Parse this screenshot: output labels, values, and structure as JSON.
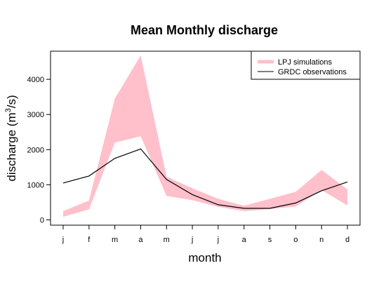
{
  "chart_data": {
    "type": "area",
    "title": "Mean Monthly discharge",
    "xlabel": "month",
    "ylabel": "discharge (m^3/s)",
    "ylabel_main": "discharge (m",
    "ylabel_sup": "3",
    "ylabel_end": "/s)",
    "categories": [
      "j",
      "f",
      "m",
      "a",
      "m",
      "j",
      "j",
      "a",
      "s",
      "o",
      "n",
      "d"
    ],
    "ylim": [
      -150,
      4800
    ],
    "yticks": [
      0,
      1000,
      2000,
      3000,
      4000
    ],
    "legend": {
      "placement": "top-right"
    },
    "series": [
      {
        "name": "LPJ simulations",
        "kind": "band",
        "color": "#FFC0CB",
        "upper": [
          250,
          550,
          3450,
          4680,
          1230,
          900,
          600,
          400,
          600,
          800,
          1420,
          870
        ],
        "lower": [
          90,
          300,
          2200,
          2380,
          680,
          560,
          370,
          250,
          310,
          380,
          850,
          410
        ]
      },
      {
        "name": "GRDC observations",
        "kind": "line",
        "color": "#000000",
        "values": [
          1050,
          1250,
          1750,
          2020,
          1150,
          720,
          430,
          330,
          330,
          480,
          830,
          1080
        ]
      }
    ]
  }
}
